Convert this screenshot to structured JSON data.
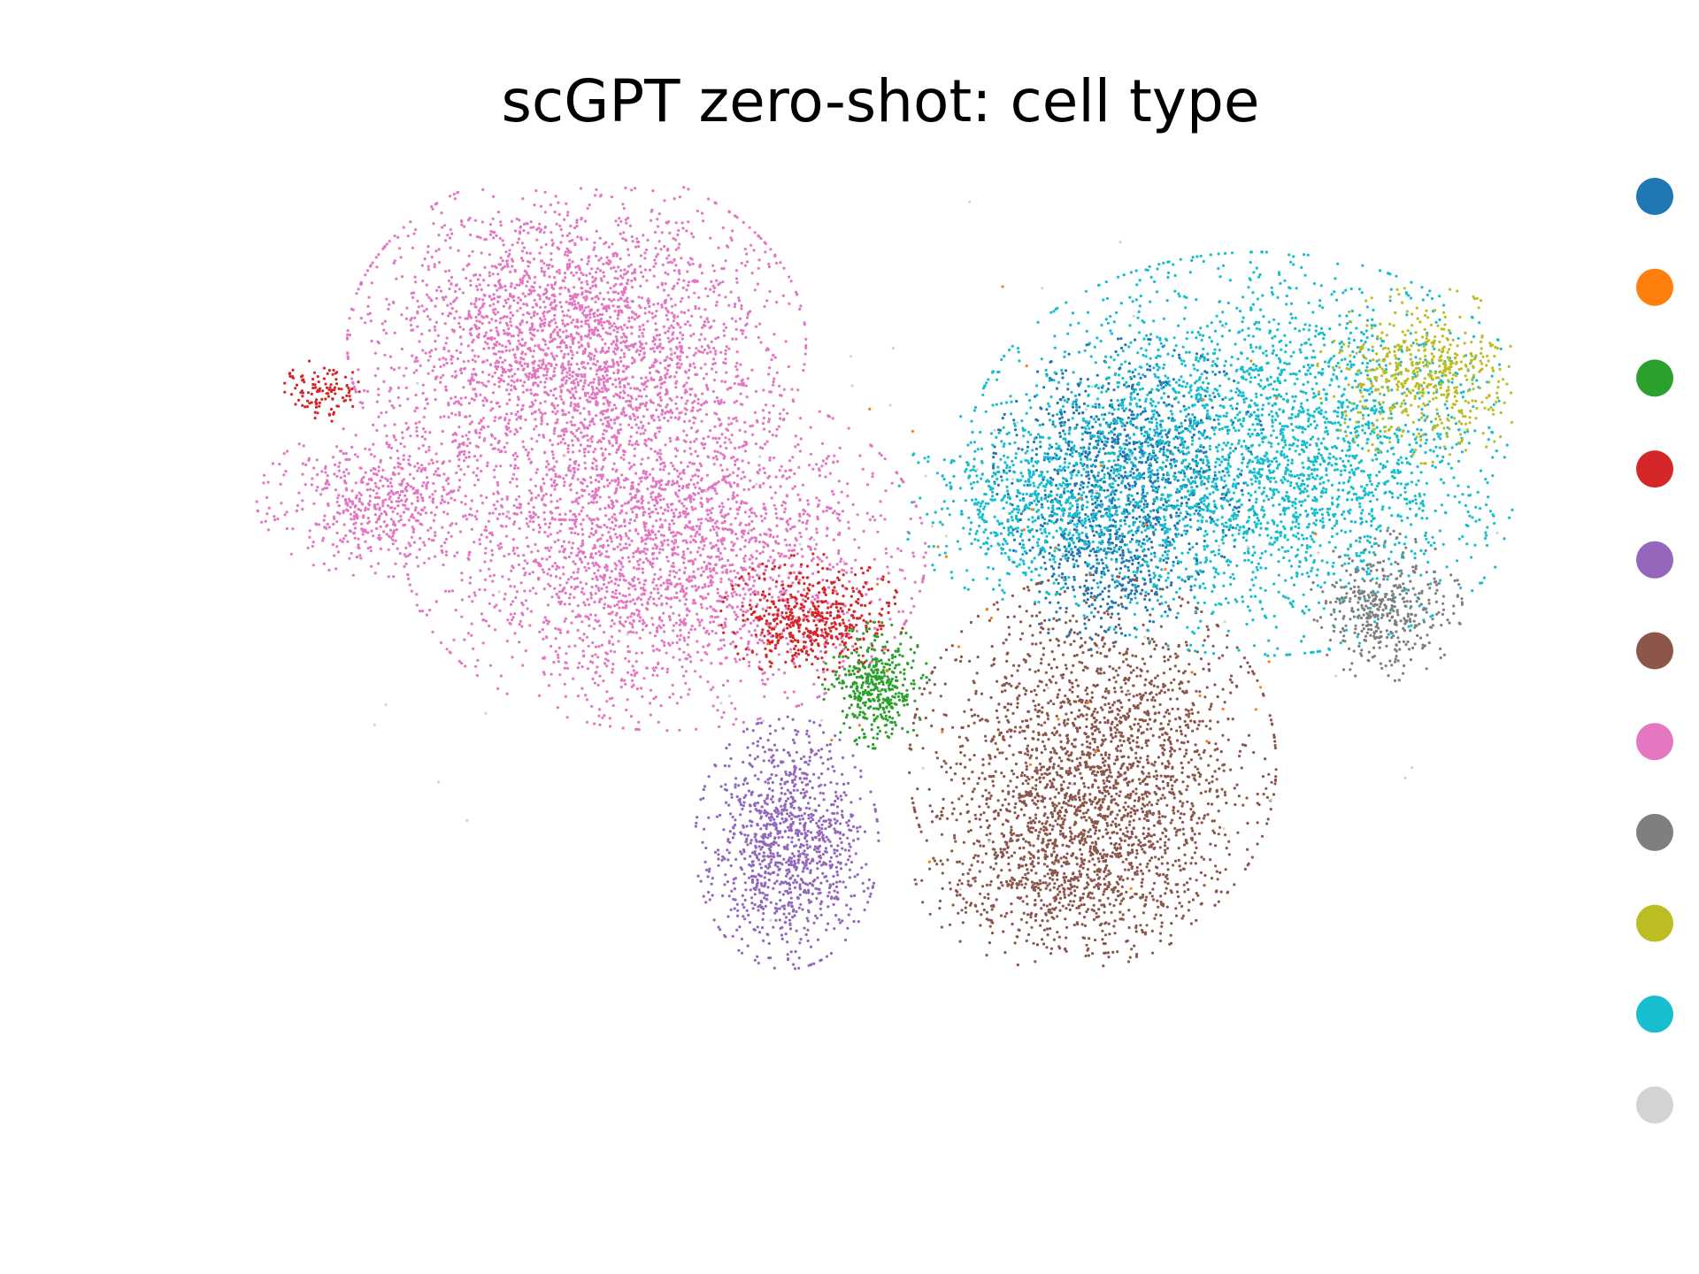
{
  "chart_data": {
    "type": "scatter",
    "title": "scGPT zero-shot: cell type",
    "xlabel": "",
    "ylabel": "",
    "axes_visible": false,
    "grid": false,
    "legend_placement": "right",
    "legend_labels_visible": false,
    "series": [
      {
        "color": "#1f77b4",
        "clusters": [
          {
            "cx": 0.4,
            "cy": 0.62,
            "sx": 0.09,
            "sy": 0.1,
            "n": 900
          },
          {
            "cx": 0.36,
            "cy": 0.45,
            "sx": 0.06,
            "sy": 0.08,
            "n": 400
          }
        ]
      },
      {
        "color": "#ff7f0e",
        "clusters": [
          {
            "cx": 0.3,
            "cy": 0.4,
            "sx": 0.2,
            "sy": 0.25,
            "n": 40
          }
        ]
      },
      {
        "color": "#2ca02c",
        "clusters": [
          {
            "cx": 0.0,
            "cy": 0.2,
            "sx": 0.035,
            "sy": 0.05,
            "n": 420
          }
        ]
      },
      {
        "color": "#d62728",
        "clusters": [
          {
            "cx": -0.1,
            "cy": 0.33,
            "sx": 0.06,
            "sy": 0.05,
            "n": 520
          },
          {
            "cx": -0.87,
            "cy": 0.76,
            "sx": 0.025,
            "sy": 0.025,
            "n": 110
          }
        ]
      },
      {
        "color": "#9467bd",
        "clusters": [
          {
            "cx": -0.14,
            "cy": -0.1,
            "sx": 0.06,
            "sy": 0.1,
            "n": 1100
          }
        ]
      },
      {
        "color": "#8c564b",
        "clusters": [
          {
            "cx": 0.34,
            "cy": 0.05,
            "sx": 0.12,
            "sy": 0.15,
            "n": 2100
          },
          {
            "cx": 0.3,
            "cy": -0.15,
            "sx": 0.1,
            "sy": 0.08,
            "n": 700
          }
        ]
      },
      {
        "color": "#e377c2",
        "clusters": [
          {
            "cx": -0.47,
            "cy": 0.85,
            "sx": 0.15,
            "sy": 0.14,
            "n": 2900
          },
          {
            "cx": -0.33,
            "cy": 0.45,
            "sx": 0.17,
            "sy": 0.14,
            "n": 2600
          },
          {
            "cx": -0.78,
            "cy": 0.55,
            "sx": 0.08,
            "sy": 0.06,
            "n": 550
          }
        ]
      },
      {
        "color": "#7f7f7f",
        "clusters": [
          {
            "cx": 0.8,
            "cy": 0.35,
            "sx": 0.05,
            "sy": 0.06,
            "n": 420
          }
        ]
      },
      {
        "color": "#bcbd22",
        "clusters": [
          {
            "cx": 0.86,
            "cy": 0.79,
            "sx": 0.07,
            "sy": 0.07,
            "n": 550
          }
        ]
      },
      {
        "color": "#17becf",
        "clusters": [
          {
            "cx": 0.6,
            "cy": 0.64,
            "sx": 0.19,
            "sy": 0.16,
            "n": 3200
          },
          {
            "cx": 0.25,
            "cy": 0.55,
            "sx": 0.09,
            "sy": 0.08,
            "n": 600
          }
        ]
      },
      {
        "color": "#d3d3d3",
        "clusters": [
          {
            "cx": 0.1,
            "cy": 0.4,
            "sx": 0.4,
            "sy": 0.3,
            "n": 70
          }
        ]
      }
    ],
    "xlim": [
      -1,
      1
    ],
    "ylim": [
      -0.6,
      1.15
    ]
  }
}
